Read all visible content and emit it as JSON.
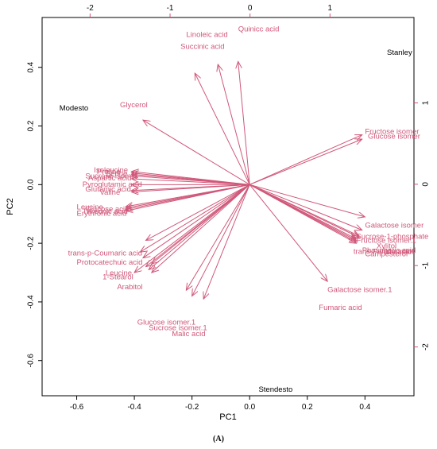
{
  "caption": "(A)",
  "chart_data": {
    "type": "scatter",
    "title": "",
    "xlabel": "PC1",
    "ylabel": "PC2",
    "xlim": [
      -0.72,
      0.57
    ],
    "ylim": [
      -0.72,
      0.57
    ],
    "xticks": [
      -0.6,
      -0.4,
      -0.2,
      0.0,
      0.2,
      0.4
    ],
    "yticks": [
      -0.6,
      -0.4,
      -0.2,
      0.0,
      0.2,
      0.4
    ],
    "xtick_labels": [
      "-0.6",
      "-0.4",
      "-0.2",
      "0.0",
      "0.2",
      "0.4"
    ],
    "ytick_labels": [
      "-0.6",
      "-0.4",
      "-0.2",
      "0.0",
      "0.2",
      "0.4"
    ],
    "top_axis_ticks": [
      -2,
      -1,
      0,
      1
    ],
    "top_axis_labels": [
      "-2",
      "-1",
      "0",
      "1"
    ],
    "right_axis_ticks": [
      1,
      0,
      -1,
      -2
    ],
    "right_axis_labels": [
      "1",
      "0",
      "-1",
      "-2"
    ],
    "secondary_axis_range": [
      -2.6,
      2.05
    ],
    "grid": false,
    "arrow_color": "#d0587a",
    "sample_color": "#000000",
    "samples": [
      {
        "name": "Stanley",
        "x": 0.52,
        "y": 0.45
      },
      {
        "name": "Modesto",
        "x": -0.61,
        "y": 0.26
      },
      {
        "name": "Stendesto",
        "x": 0.09,
        "y": -0.7
      }
    ],
    "variables": [
      {
        "name": "Quinicc acid",
        "x": -0.04,
        "y": 0.42,
        "label": "Quinicc acid",
        "lx": -0.04,
        "ly": 0.53
      },
      {
        "name": "Linoleic acid",
        "x": -0.11,
        "y": 0.41,
        "label": "Linoleic acid",
        "lx": -0.22,
        "ly": 0.51
      },
      {
        "name": "Succinic acid",
        "x": -0.19,
        "y": 0.38,
        "label": "Succinic acid",
        "lx": -0.24,
        "ly": 0.47
      },
      {
        "name": "Glycerol",
        "x": -0.37,
        "y": 0.22,
        "label": "Glycerol",
        "lx": -0.45,
        "ly": 0.27
      },
      {
        "name": "Fructose isomer",
        "x": 0.39,
        "y": 0.17,
        "label": "Fructose isomer",
        "lx": 0.4,
        "ly": 0.18
      },
      {
        "name": "Glucose isomer",
        "x": 0.39,
        "y": 0.155,
        "label": "Glucose isomer",
        "lx": 0.41,
        "ly": 0.163
      },
      {
        "name": "Isoleucine",
        "x": -0.41,
        "y": 0.045,
        "label": "Isoleucine",
        "lx": -0.54,
        "ly": 0.048
      },
      {
        "name": "Proline",
        "x": -0.41,
        "y": 0.04,
        "label": "Proline",
        "lx": -0.53,
        "ly": 0.043
      },
      {
        "name": "Serine",
        "x": -0.41,
        "y": 0.035,
        "label": "Serine",
        "lx": -0.5,
        "ly": 0.036
      },
      {
        "name": "Sucrose isomer",
        "x": -0.41,
        "y": 0.03,
        "label": "Sucrose isomer",
        "lx": -0.57,
        "ly": 0.028
      },
      {
        "name": "Aspartic acid",
        "x": -0.41,
        "y": 0.02,
        "label": "Aspartic acid",
        "lx": -0.56,
        "ly": 0.021
      },
      {
        "name": "Pyroglutamic acid",
        "x": -0.41,
        "y": 0.0,
        "label": "Pyroglutamic acid",
        "lx": -0.58,
        "ly": 0.0
      },
      {
        "name": "Glutamic acid",
        "x": -0.41,
        "y": -0.02,
        "label": "Glutamic acid",
        "lx": -0.57,
        "ly": -0.017
      },
      {
        "name": "Valine",
        "x": -0.41,
        "y": -0.025,
        "label": "Valine",
        "lx": -0.52,
        "ly": -0.028
      },
      {
        "name": "Leucine",
        "x": -0.43,
        "y": -0.075,
        "label": "Leucine",
        "lx": -0.6,
        "ly": -0.078
      },
      {
        "name": "Glucose acid",
        "x": -0.43,
        "y": -0.08,
        "label": "Glucose acid",
        "lx": -0.57,
        "ly": -0.085
      },
      {
        "name": "Threonic acid",
        "x": -0.43,
        "y": -0.085,
        "label": "Threonic acid",
        "lx": -0.58,
        "ly": -0.092
      },
      {
        "name": "Erythronic acid",
        "x": -0.43,
        "y": -0.09,
        "label": "Erythronic acid",
        "lx": -0.6,
        "ly": -0.1
      },
      {
        "name": "trans-p-Coumaric acid",
        "x": -0.38,
        "y": -0.23,
        "label": "trans-p-Coumaric acid",
        "lx": -0.63,
        "ly": -0.235
      },
      {
        "name": "Protocatechuic acid",
        "x": -0.37,
        "y": -0.25,
        "label": "Protocatechuic acid",
        "lx": -0.6,
        "ly": -0.266
      },
      {
        "name": "Leucine",
        "x": -0.36,
        "y": -0.28,
        "label": "Leucine",
        "lx": -0.5,
        "ly": -0.302
      },
      {
        "name": "1-Stearol",
        "x": -0.35,
        "y": -0.29,
        "label": "1-Stearol",
        "lx": -0.51,
        "ly": -0.316
      },
      {
        "name": "Arabitol",
        "x": -0.34,
        "y": -0.3,
        "label": "Arabitol",
        "lx": -0.46,
        "ly": -0.35
      },
      {
        "name": "Glucose isomer.1",
        "x": -0.22,
        "y": -0.36,
        "label": "Glucose isomer.1",
        "lx": -0.39,
        "ly": -0.47
      },
      {
        "name": "Sucrose isomer.1",
        "x": -0.2,
        "y": -0.38,
        "label": "Sucrose isomer.1",
        "lx": -0.35,
        "ly": -0.49
      },
      {
        "name": "Malic acid",
        "x": -0.16,
        "y": -0.39,
        "label": "Malic acid",
        "lx": -0.27,
        "ly": -0.51
      },
      {
        "name": "Galactose isomer",
        "x": 0.4,
        "y": -0.11,
        "label": "Galactose isomer",
        "lx": 0.4,
        "ly": -0.14
      },
      {
        "name": "Sucrose-1-phosphate",
        "x": 0.39,
        "y": -0.155,
        "label": "Sucrose-1-phosphate",
        "lx": 0.37,
        "ly": -0.178
      },
      {
        "name": "Fructose isomer.1",
        "x": 0.38,
        "y": -0.175,
        "label": "Fructose isomer.1",
        "lx": 0.37,
        "ly": -0.192
      },
      {
        "name": "Xylitol",
        "x": 0.38,
        "y": -0.18,
        "label": "Xylitol",
        "lx": 0.44,
        "ly": -0.21
      },
      {
        "name": "trans-Ferulic acid",
        "x": 0.37,
        "y": -0.185,
        "label": "trans-Ferulic acid",
        "lx": 0.36,
        "ly": -0.23
      },
      {
        "name": "Phosphoric acid",
        "x": 0.37,
        "y": -0.19,
        "label": "Phosphoric acid",
        "lx": 0.39,
        "ly": -0.225
      },
      {
        "name": "Mannitol",
        "x": 0.37,
        "y": -0.195,
        "label": "Mannitol",
        "lx": 0.47,
        "ly": -0.23
      },
      {
        "name": "Campesterol",
        "x": 0.37,
        "y": -0.2,
        "label": "Campesterol",
        "lx": 0.4,
        "ly": -0.238
      },
      {
        "name": "Galactose isomer.1",
        "x": 0.27,
        "y": -0.33,
        "label": "Galactose isomer.1",
        "lx": 0.27,
        "ly": -0.36
      },
      {
        "name": "Fumaric acid",
        "x": 0.0,
        "y": 0.0,
        "label": "Fumaric acid",
        "lx": 0.24,
        "ly": -0.42
      }
    ],
    "extra_arrows": [
      {
        "x": -0.36,
        "y": -0.19
      },
      {
        "x": -0.34,
        "y": -0.27
      },
      {
        "x": -0.4,
        "y": -0.3
      }
    ]
  }
}
